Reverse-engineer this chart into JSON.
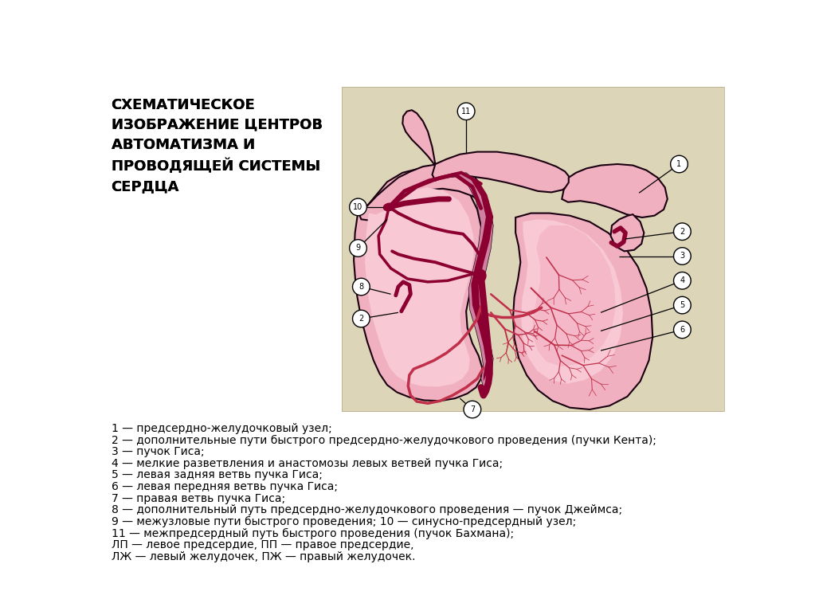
{
  "title": "СХЕМАТИЧЕСКОЕ\nИЗОБРАЖЕНИЕ ЦЕНТРОВ\nАВТОМАТИЗМА И\nПРОВОДЯЩЕЙ СИСТЕМЫ\nСЕРДЦА",
  "bg_color": "#ffffff",
  "diagram_bg": "#ddd5b8",
  "heart_fill": "#f0b0c0",
  "heart_fill2": "#e8a0b8",
  "heart_stroke": "#1a0010",
  "dark_red": "#8b0030",
  "medium_red": "#c0304a",
  "legend_lines": [
    "1 — предсердно-желудочковый узел;",
    "2 — дополнительные пути быстрого предсердно-желудочкового проведения (пучки Кента);",
    "3 — пучок Гиса;",
    "4 — мелкие разветвления и анастомозы левых ветвей пучка Гиса;",
    "5 — левая задняя ветвь пучка Гиса;",
    "6 — левая передняя ветвь пучка Гиса;",
    "7 — правая ветвь пучка Гиса;",
    "8 — дополнительный путь предсердно-желудочкового проведения — пучок Джеймса;",
    "9 — межузловые пути быстрого проведения; 10 — синусно-предсердный узел;",
    "11 — межпредсердный путь быстрого проведения (пучок Бахмана);",
    "ЛП — левое предсердие, ПП — правое предсердие,",
    "ЛЖ — левый желудочек, ПЖ — правый желудочек."
  ],
  "font_size_title": 13,
  "font_size_legend": 10
}
